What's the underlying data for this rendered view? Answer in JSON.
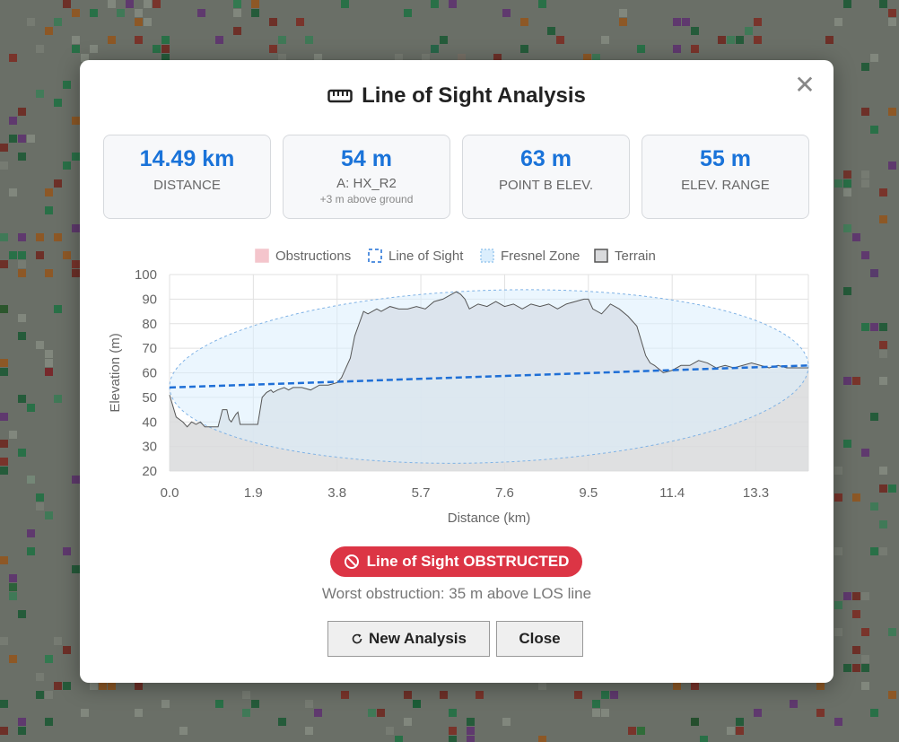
{
  "modal": {
    "title": "Line of Sight Analysis",
    "icon": "ruler-icon",
    "close_glyph": "✕"
  },
  "stats": [
    {
      "value": "14.49 km",
      "label": "DISTANCE",
      "sub": ""
    },
    {
      "value": "54 m",
      "label": "A: HX_R2",
      "sub": "+3 m above ground"
    },
    {
      "value": "63 m",
      "label": "POINT B ELEV.",
      "sub": ""
    },
    {
      "value": "55 m",
      "label": "ELEV. RANGE",
      "sub": ""
    }
  ],
  "chart_data": {
    "type": "area",
    "xlabel": "Distance (km)",
    "ylabel": "Elevation (m)",
    "xlim": [
      0,
      14.49
    ],
    "ylim": [
      20,
      100
    ],
    "x_ticks": [
      "0.0",
      "1.9",
      "3.8",
      "5.7",
      "7.6",
      "9.5",
      "11.4",
      "13.3"
    ],
    "y_ticks": [
      20,
      30,
      40,
      50,
      60,
      70,
      80,
      90,
      100
    ],
    "grid": true,
    "legend_position": "top",
    "legend": [
      {
        "name": "Obstructions",
        "color": "#f4c5cc"
      },
      {
        "name": "Line of Sight",
        "color": "#1f6fd6"
      },
      {
        "name": "Fresnel Zone",
        "color": "#dbeefd"
      },
      {
        "name": "Terrain",
        "color": "#d9dadc"
      }
    ],
    "los": {
      "start": 54,
      "end": 63
    },
    "terrain": {
      "x": [
        0,
        0.15,
        0.3,
        0.4,
        0.5,
        0.6,
        0.7,
        0.8,
        0.9,
        1.0,
        1.1,
        1.2,
        1.3,
        1.35,
        1.4,
        1.5,
        1.55,
        1.6,
        1.7,
        1.75,
        1.8,
        1.9,
        2.0,
        2.1,
        2.2,
        2.3,
        2.35,
        2.45,
        2.6,
        2.7,
        2.8,
        3.0,
        3.2,
        3.4,
        3.6,
        3.8,
        3.9,
        4.1,
        4.2,
        4.3,
        4.4,
        4.5,
        4.7,
        4.8,
        5.0,
        5.2,
        5.4,
        5.6,
        5.8,
        6.0,
        6.2,
        6.4,
        6.5,
        6.6,
        6.7,
        6.8,
        7.0,
        7.2,
        7.4,
        7.6,
        7.8,
        8.0,
        8.2,
        8.4,
        8.6,
        8.8,
        9.0,
        9.2,
        9.4,
        9.5,
        9.6,
        9.8,
        10.0,
        10.2,
        10.4,
        10.6,
        10.8,
        10.9,
        11.0,
        11.2,
        11.4,
        11.6,
        11.8,
        12.0,
        12.2,
        12.4,
        12.6,
        12.8,
        13.0,
        13.2,
        13.4,
        13.6,
        13.8,
        14.0,
        14.2,
        14.49
      ],
      "y": [
        51,
        42,
        40,
        38,
        40,
        39,
        40,
        38,
        38,
        38,
        38,
        45,
        45,
        41,
        40,
        43,
        44,
        39,
        39,
        39,
        39,
        39,
        39,
        50,
        52,
        53,
        52,
        53,
        54,
        53,
        54,
        54,
        53,
        55,
        55,
        56,
        58,
        66,
        75,
        80,
        85,
        84,
        86,
        85,
        87,
        86,
        86,
        87,
        86,
        89,
        90,
        92,
        93,
        92,
        90,
        86,
        88,
        87,
        89,
        87,
        88,
        86,
        88,
        87,
        88,
        86,
        88,
        89,
        90,
        90,
        86,
        84,
        88,
        86,
        83,
        79,
        67,
        64,
        63,
        60,
        61,
        63,
        63,
        65,
        64,
        62,
        63,
        62,
        63,
        64,
        63,
        62,
        63,
        62,
        62,
        62
      ]
    }
  },
  "status": {
    "badge": "Line of Sight OBSTRUCTED",
    "worst": "Worst obstruction: 35 m above LOS line"
  },
  "buttons": {
    "new_analysis": "New Analysis",
    "close": "Close"
  },
  "colors": {
    "accent": "#1a73d9",
    "danger": "#dc3545",
    "obstruction": "#f4c5cc",
    "terrain": "#d9dadc",
    "fresnel": "#dbeefd",
    "los": "#1f6fd6"
  }
}
